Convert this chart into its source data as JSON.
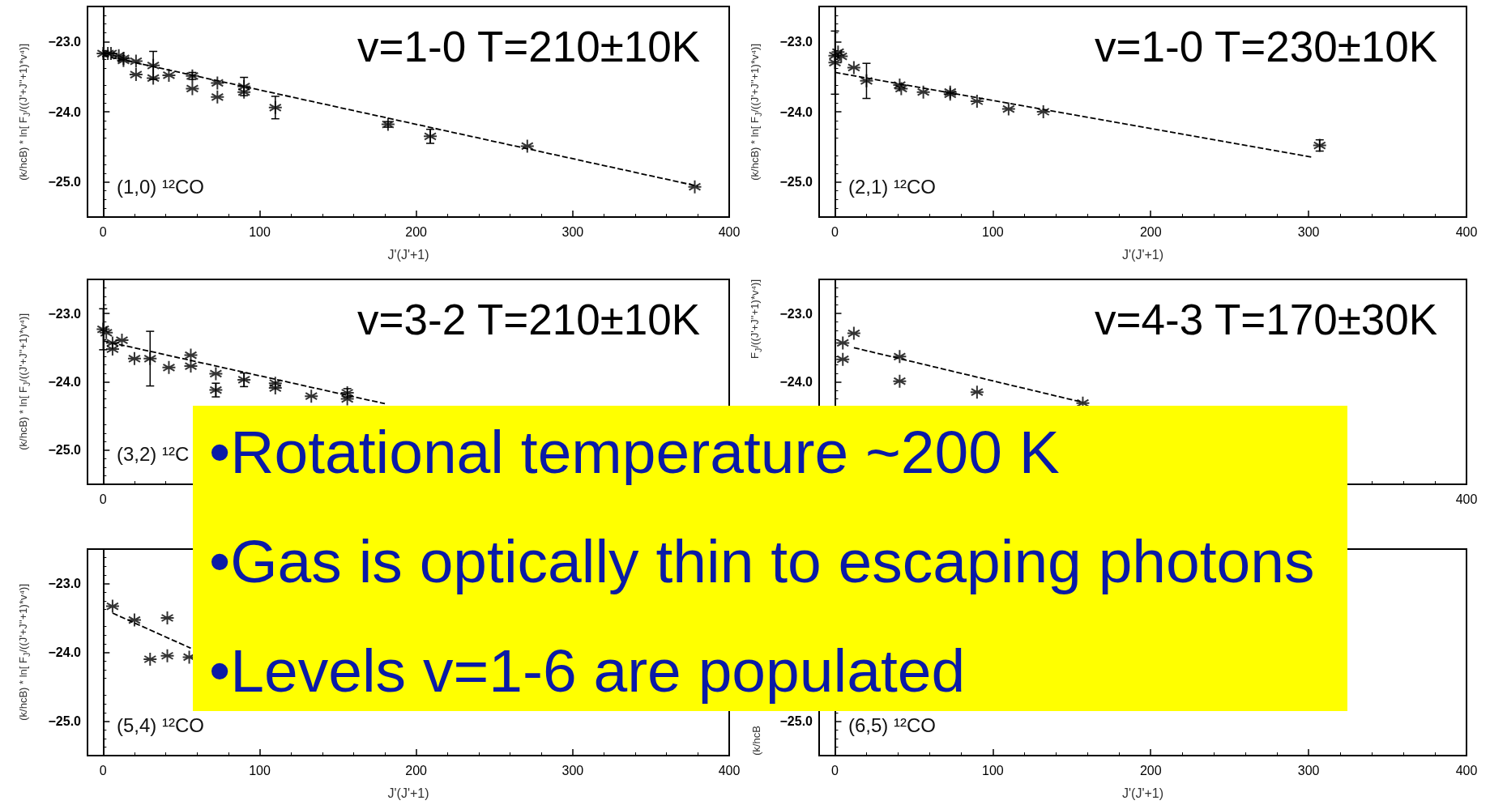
{
  "chart_data": [
    {
      "type": "scatter",
      "title": "v=1-0 T=210±10K",
      "annotations": [
        "(1,0) ¹²CO"
      ],
      "xlabel": "J'(J'+1)",
      "ylabel": "(k/hcB) * ln[ F$_{J}$/((J'+J''+1)*v⁴)]",
      "xlim": [
        -10,
        400
      ],
      "xticks": [
        0,
        100,
        200,
        300,
        400
      ],
      "ylim": [
        -25.5,
        -22.5
      ],
      "yticks": [
        {
          "value": -23,
          "label": "−23.0"
        },
        {
          "value": -24,
          "label": "−24.0"
        },
        {
          "value": -25,
          "label": "−25.0"
        }
      ],
      "marker": "cross",
      "series": [
        {
          "color": "#000000",
          "x": [
            0,
            3,
            5,
            10,
            13,
            13,
            21,
            21,
            32,
            32,
            42,
            57,
            57,
            73,
            73,
            90,
            90,
            110,
            182,
            209,
            271,
            378
          ],
          "values": [
            -23.17,
            -23.17,
            -23.17,
            -23.2,
            -23.24,
            -23.27,
            -23.28,
            -23.47,
            -23.34,
            -23.52,
            -23.48,
            -23.49,
            -23.67,
            -23.59,
            -23.79,
            -23.64,
            -23.72,
            -23.94,
            -24.18,
            -24.35,
            -24.49,
            -25.07
          ],
          "errors": [
            null,
            null,
            null,
            null,
            null,
            null,
            null,
            null,
            0.2,
            null,
            null,
            0.05,
            null,
            null,
            null,
            0.13,
            null,
            0.16,
            0.04,
            0.1,
            null,
            null
          ]
        },
        {
          "type": "line",
          "color": "#000000",
          "marker": "none",
          "line_style": "dashed",
          "x": [
            0,
            380
          ],
          "values": [
            -23.2,
            -25.06
          ]
        }
      ]
    },
    {
      "type": "scatter",
      "title": "v=1-0 T=230±10K",
      "annotations": [
        "(2,1) ¹²CO"
      ],
      "xlabel": "J'(J'+1)",
      "ylabel": "(k/hcB) * ln[ F$_{J}$/((J'+J''+1)*v⁴)]",
      "xlim": [
        -10,
        400
      ],
      "xticks": [
        0,
        100,
        200,
        300,
        400
      ],
      "ylim": [
        -25.5,
        -22.5
      ],
      "yticks": [
        {
          "value": -23,
          "label": "−23.0"
        },
        {
          "value": -24,
          "label": "−24.0"
        },
        {
          "value": -25,
          "label": "−25.0"
        }
      ],
      "marker": "cross",
      "series": [
        {
          "color": "#000000",
          "x": [
            0,
            0,
            2,
            4,
            12,
            20,
            41,
            42,
            56,
            73,
            73,
            90,
            110,
            132,
            307
          ],
          "values": [
            -23.2,
            -23.3,
            -23.15,
            -23.21,
            -23.37,
            -23.56,
            -23.62,
            -23.67,
            -23.72,
            -23.72,
            -23.75,
            -23.85,
            -23.96,
            -24.0,
            -24.48
          ],
          "errors": [
            null,
            0.45,
            null,
            null,
            null,
            0.25,
            null,
            null,
            null,
            null,
            null,
            null,
            null,
            null,
            0.08
          ]
        },
        {
          "type": "line",
          "color": "#000000",
          "marker": "none",
          "line_style": "dashed",
          "x": [
            0,
            303
          ],
          "values": [
            -23.44,
            -24.65
          ]
        }
      ]
    },
    {
      "type": "scatter",
      "title": "v=3-2 T=210±10K",
      "annotations": [
        "(3,2) ¹²C",
        "0"
      ],
      "tick_labels": "y",
      "ylabel": "(k/hcB) * ln[ F$_{J}$/((J'+J''+1)*v⁴)]",
      "xlim": [
        -10,
        400
      ],
      "xticks": [
        0,
        100,
        200,
        300,
        400
      ],
      "ylim": [
        -25.5,
        -22.5
      ],
      "yticks": [
        {
          "value": -23,
          "label": "−23.0"
        },
        {
          "value": -24,
          "label": "−24.0"
        },
        {
          "value": -25,
          "label": "−25.0"
        }
      ],
      "marker": "cross",
      "series": [
        {
          "color": "#000000",
          "x": [
            0,
            2,
            6,
            6,
            12,
            20,
            30,
            42,
            56,
            56,
            72,
            72,
            90,
            110,
            110,
            133,
            156,
            156
          ],
          "values": [
            -23.23,
            -23.28,
            -23.43,
            -23.52,
            -23.39,
            -23.66,
            -23.66,
            -23.79,
            -23.61,
            -23.77,
            -23.88,
            -24.12,
            -23.97,
            -24.02,
            -24.09,
            -24.21,
            -24.16,
            -24.25
          ],
          "errors": [
            0.3,
            null,
            null,
            null,
            null,
            null,
            0.4,
            null,
            null,
            null,
            null,
            0.1,
            0.1,
            null,
            null,
            null,
            0.06,
            null
          ]
        },
        {
          "type": "line",
          "color": "#000000",
          "marker": "none",
          "line_style": "dashed",
          "x": [
            0,
            180
          ],
          "values": [
            -23.4,
            -24.32
          ]
        }
      ]
    },
    {
      "type": "scatter",
      "title": "v=4-3 T=170±30K",
      "annotations": [
        "400"
      ],
      "tick_labels": "y",
      "ylabel": "F$_{J}$/((J'+J''+1)*v⁴)]",
      "xlim": [
        -10,
        400
      ],
      "xticks": [
        0,
        100,
        200,
        300,
        400
      ],
      "ylim": [
        -25.5,
        -22.5
      ],
      "yticks": [
        {
          "value": -23,
          "label": "−23.0"
        },
        {
          "value": -24,
          "label": "−24.0"
        },
        {
          "value": -25,
          "label": null
        }
      ],
      "marker": "cross",
      "series": [
        {
          "color": "#000000",
          "x": [
            5,
            5,
            12,
            41,
            41,
            90,
            157
          ],
          "values": [
            -23.43,
            -23.67,
            -23.29,
            -23.63,
            -23.99,
            -24.15,
            -24.31
          ]
        },
        {
          "type": "line",
          "color": "#000000",
          "marker": "none",
          "line_style": "dashed",
          "x": [
            12,
            157
          ],
          "values": [
            -23.5,
            -24.3
          ]
        }
      ]
    },
    {
      "type": "scatter",
      "annotations": [
        "(5,4) ¹²CO"
      ],
      "xlabel": "J'(J'+1)",
      "ylabel": "(k/hcB) * ln[ F$_{J}$/((J'+J''+1)*v⁴)]",
      "xlim": [
        -10,
        400
      ],
      "xticks": [
        0,
        100,
        200,
        300,
        400
      ],
      "ylim": [
        -25.5,
        -22.5
      ],
      "yticks": [
        {
          "value": -23,
          "label": "−23.0"
        },
        {
          "value": -24,
          "label": "−24.0"
        },
        {
          "value": -25,
          "label": "−25.0"
        }
      ],
      "marker": "cross",
      "series": [
        {
          "color": "#000000",
          "x": [
            6,
            20,
            30,
            41,
            41,
            55
          ],
          "values": [
            -23.33,
            -23.53,
            -24.1,
            -24.05,
            -23.5,
            -24.07
          ]
        },
        {
          "type": "line",
          "color": "#000000",
          "marker": "none",
          "line_style": "dashed",
          "x": [
            6,
            56
          ],
          "values": [
            -23.43,
            -23.94
          ]
        }
      ]
    },
    {
      "type": "scatter",
      "annotations": [
        "(6,5) ¹²CO",
        "−25.0"
      ],
      "tick_labels": "x",
      "xlabel": "J'(J'+1)",
      "ylabel": "(k/hcB",
      "xlim": [
        -10,
        400
      ],
      "xticks": [
        0,
        100,
        200,
        300,
        400
      ],
      "ylim": [
        -25.5,
        -22.5
      ],
      "yticks": [
        {
          "value": -23,
          "label": null
        },
        {
          "value": -24,
          "label": null
        },
        {
          "value": -25,
          "label": null
        }
      ]
    },
    {
      "type": "other",
      "annotations": [
        "•Rotational temperature ~200 K",
        "•Gas is optically thin to escaping photons",
        "•Levels v=1-6 are populated"
      ]
    }
  ]
}
